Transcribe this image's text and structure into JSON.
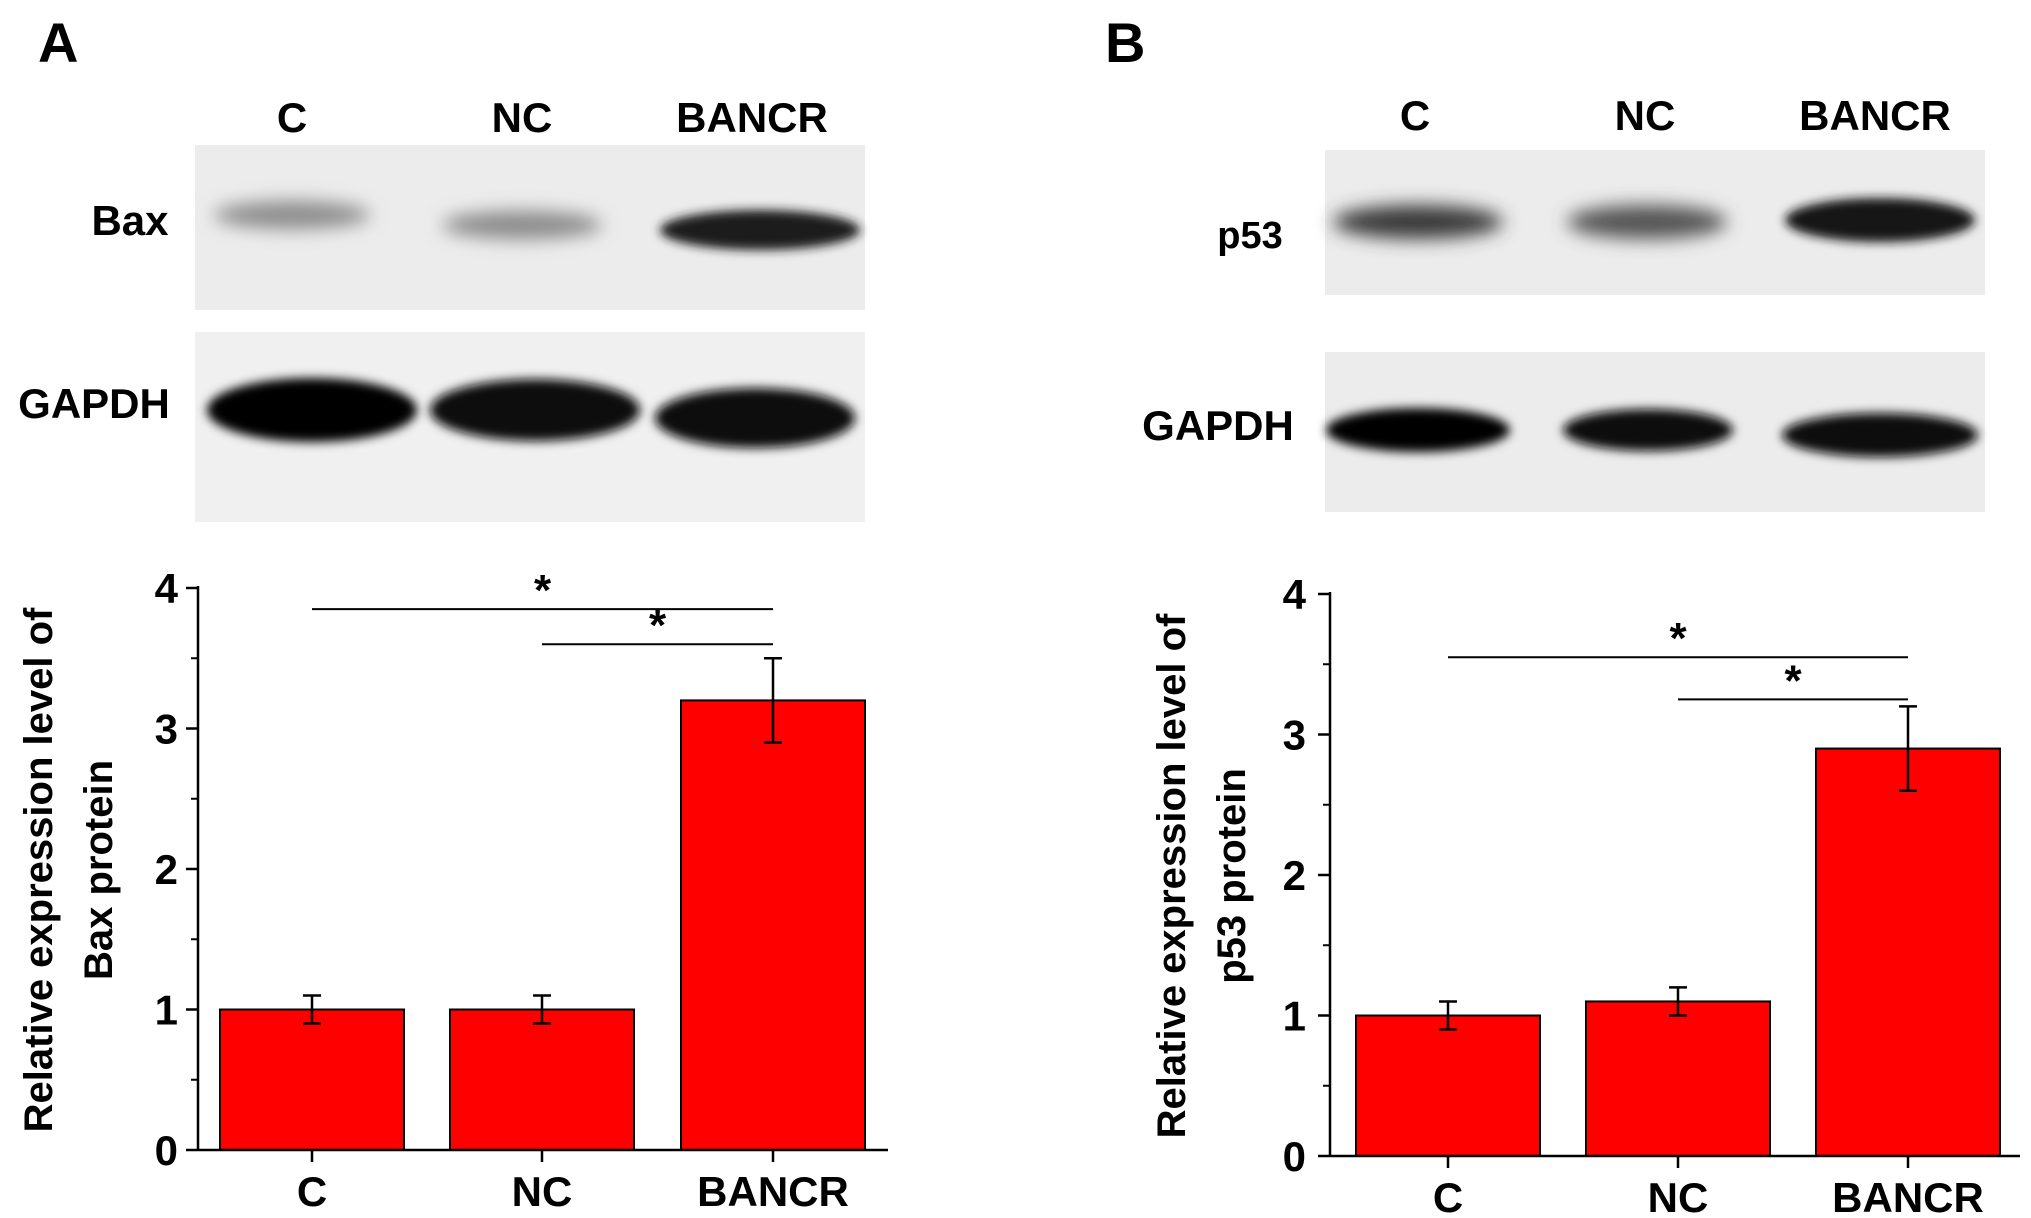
{
  "panels": [
    {
      "letter": "A",
      "blot": {
        "lanes": [
          "C",
          "NC",
          "BANCR"
        ],
        "proteins": [
          "Bax",
          "GAPDH"
        ]
      },
      "chart_data": {
        "type": "bar",
        "categories": [
          "C",
          "NC",
          "BANCR"
        ],
        "values": [
          1.0,
          1.0,
          3.2
        ],
        "errors": [
          0.1,
          0.1,
          0.3
        ],
        "bar_color": "#ff0000",
        "ylabel_line1": "Relative expression level of",
        "ylabel_line2": "Bax protein",
        "ylim": [
          0,
          4
        ],
        "yticks": [
          0,
          1,
          2,
          3,
          4
        ],
        "ytick_labels": [
          "0",
          "1",
          "2",
          "3",
          "4"
        ],
        "significance": [
          {
            "from": "C",
            "to": "BANCR",
            "y": 3.85,
            "label": "*"
          },
          {
            "from": "NC",
            "to": "BANCR",
            "y": 3.6,
            "label": "*"
          }
        ],
        "grid": false
      }
    },
    {
      "letter": "B",
      "blot": {
        "lanes": [
          "C",
          "NC",
          "BANCR"
        ],
        "proteins": [
          "p53",
          "GAPDH"
        ]
      },
      "chart_data": {
        "type": "bar",
        "categories": [
          "C",
          "NC",
          "BANCR"
        ],
        "values": [
          1.0,
          1.1,
          2.9
        ],
        "errors": [
          0.1,
          0.1,
          0.3
        ],
        "bar_color": "#ff0000",
        "ylabel_line1": "Relative expression level of",
        "ylabel_line2": "p53 protein",
        "ylim": [
          0,
          4
        ],
        "yticks": [
          0,
          1,
          2,
          3,
          4
        ],
        "ytick_labels": [
          "0",
          "1",
          "2",
          "3",
          "4"
        ],
        "significance": [
          {
            "from": "C",
            "to": "BANCR",
            "y": 3.55,
            "label": "*"
          },
          {
            "from": "NC",
            "to": "BANCR",
            "y": 3.25,
            "label": "*"
          }
        ],
        "grid": false
      }
    }
  ]
}
